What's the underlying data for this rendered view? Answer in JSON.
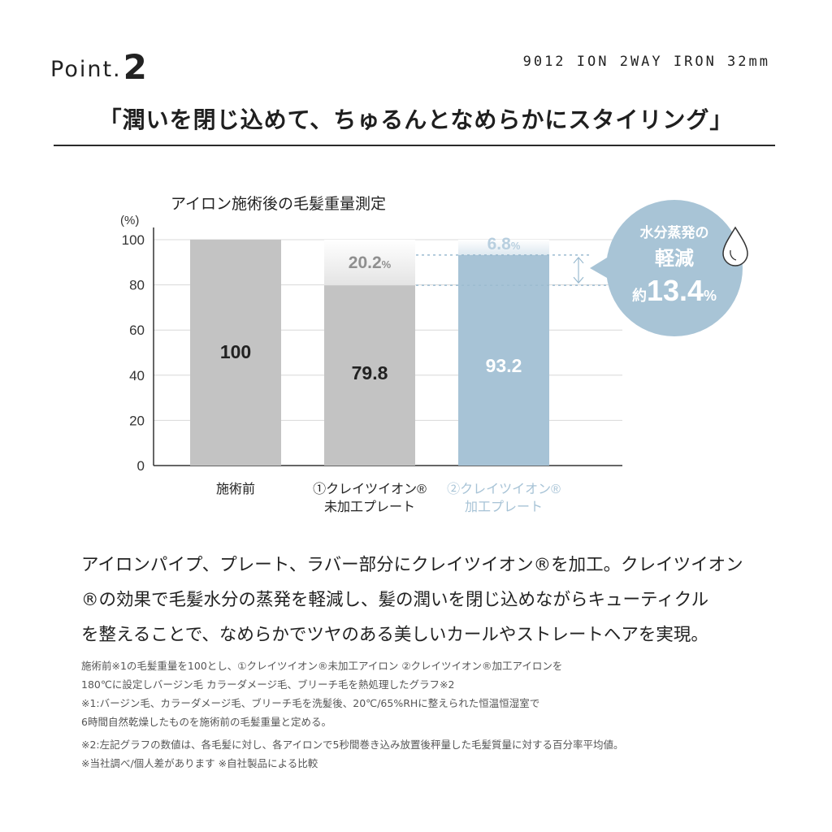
{
  "header": {
    "point_label": "Point.",
    "point_number": "2",
    "model_name": "9012 ION 2WAY IRON 32mm",
    "headline": "「潤いを閉じ込めて、ちゅるんとなめらかにスタイリング」"
  },
  "chart_data": {
    "type": "bar",
    "title": "アイロン施術後の毛髪重量測定",
    "ylabel": "(%)",
    "ylim": [
      0,
      100
    ],
    "yticks": [
      "0",
      "20",
      "40",
      "60",
      "80",
      "100"
    ],
    "grid": true,
    "categories": [
      [
        "施術前"
      ],
      [
        "①クレイツイオン®",
        "未加工プレート"
      ],
      [
        "②クレイツイオン®",
        "加工プレート"
      ]
    ],
    "values": [
      100,
      79.8,
      93.2
    ],
    "value_labels": [
      "100",
      "79.8",
      "93.2"
    ],
    "remainders": [
      null,
      20.2,
      6.8
    ],
    "remainder_labels": [
      "",
      "20.2",
      "6.8"
    ],
    "remainder_unit": "%",
    "colors": {
      "bar_before": "#c3c3c3",
      "bar_untreated": "#c3c3c3",
      "bar_treated": "#a7c3d6",
      "remainder_untreated": "#e4e4e4",
      "remainder_treated": "#dde8f0",
      "callout": "#a8c4d6",
      "dashed": "#9bbbd0",
      "label_treated": "#a7c3d6"
    },
    "callout": {
      "line1": "水分蒸発の",
      "line2": "軽減",
      "prefix": "約",
      "value": "13.4",
      "unit": "%",
      "icon": "water-drop-icon"
    }
  },
  "description": {
    "lines": [
      "アイロンパイプ、プレート、ラバー部分にクレイツイオン®を加工。クレイツイオン",
      "®の効果で毛髪水分の蒸発を軽減し、髪の潤いを閉じ込めながらキューティクル",
      "を整えることで、なめらかでツヤのある美しいカールやストレートヘアを実現。"
    ]
  },
  "notes": {
    "lines": [
      "施術前※1の毛髪重量を100とし、①クレイツイオン®未加工アイロン ②クレイツイオン®加工アイロンを",
      "180℃に設定しバージン毛 カラーダメージ毛、ブリーチ毛を熱処理したグラフ※2",
      "※1:バージン毛、カラーダメージ毛、ブリーチ毛を洗髪後、20℃/65%RHに整えられた恒温恒湿室で",
      "6時間自然乾燥したものを施術前の毛髪重量と定める。",
      "※2:左記グラフの数値は、各毛髪に対し、各アイロンで5秒間巻き込み放置後秤量した毛髪質量に対する百分率平均値。",
      "※当社調べ/個人差があります ※自社製品による比較"
    ]
  }
}
